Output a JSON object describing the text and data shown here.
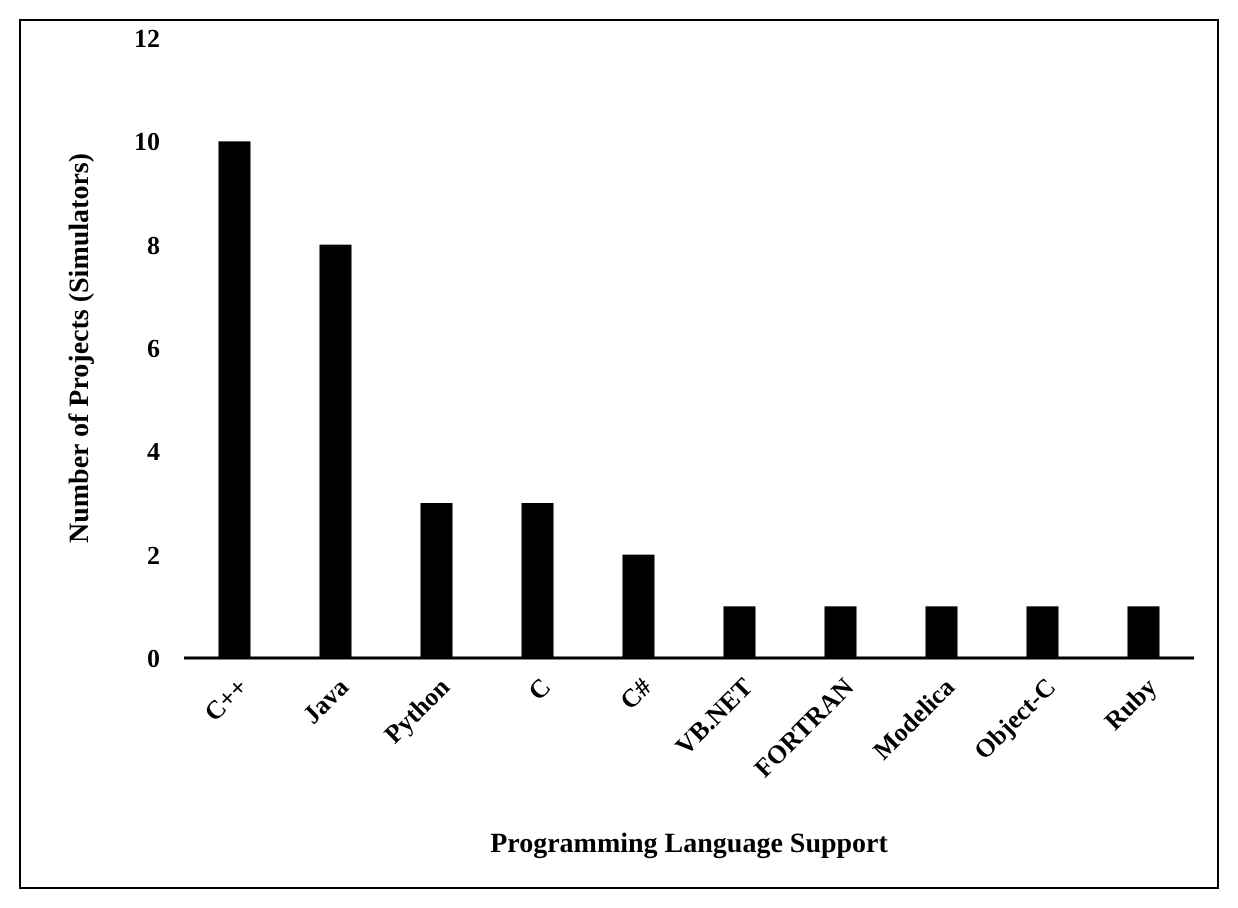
{
  "chart_data": {
    "type": "bar",
    "xlabel": "Programming Language Support",
    "ylabel": "Number of Projects (Simulators)",
    "categories": [
      "C++",
      "Java",
      "Python",
      "C",
      "C#",
      "VB.NET",
      "FORTRAN",
      "Modelica",
      "Object-C",
      "Ruby"
    ],
    "values": [
      10,
      8,
      3,
      3,
      2,
      1,
      1,
      1,
      1,
      1
    ],
    "color": "#000000",
    "ylim": [
      0,
      12
    ],
    "yticks": [
      0,
      2,
      4,
      6,
      8,
      10,
      12
    ],
    "grid": false
  }
}
